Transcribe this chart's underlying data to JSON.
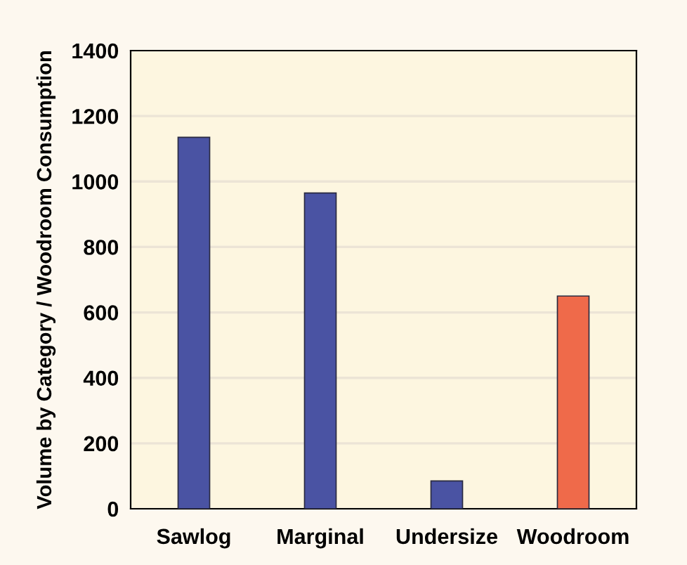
{
  "chart_data": {
    "type": "bar",
    "ylabel": "Volume by Category / Woodroom Consumption",
    "categories": [
      "Sawlog",
      "Marginal",
      "Undersize",
      "Woodroom"
    ],
    "values": [
      1135,
      965,
      85,
      650
    ],
    "colors": [
      "#4a53a3",
      "#4a53a3",
      "#4a53a3",
      "#ef6a4a"
    ],
    "ylim": [
      0,
      1400
    ],
    "yticks": [
      0,
      200,
      400,
      600,
      800,
      1000,
      1200,
      1400
    ],
    "grid": "y"
  }
}
